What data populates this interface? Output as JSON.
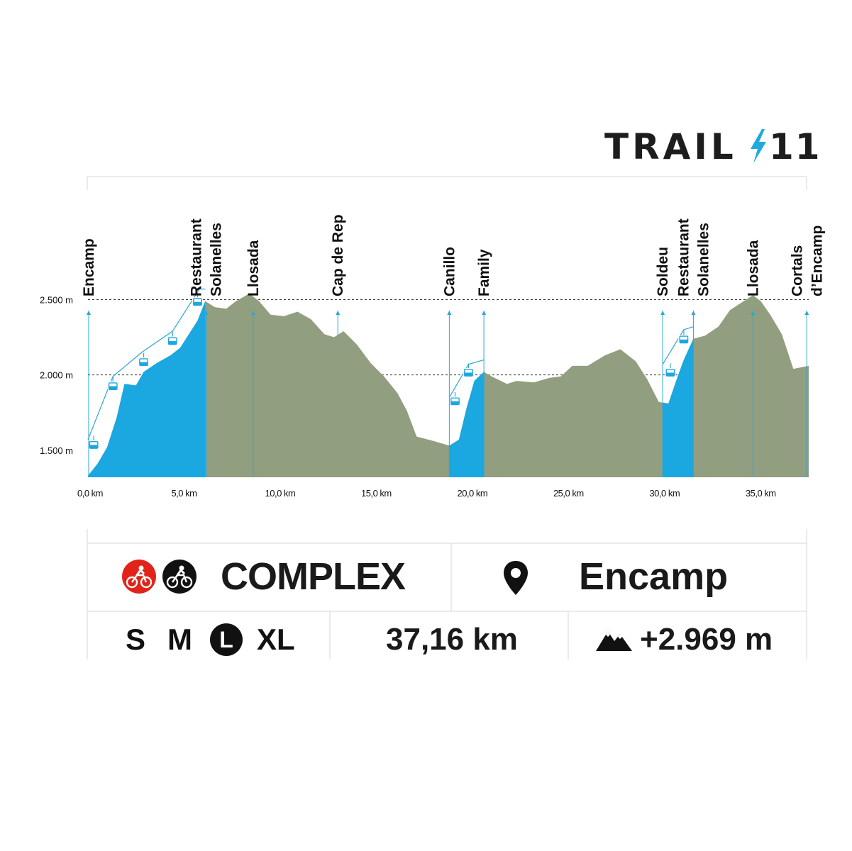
{
  "logo": {
    "text": "TRAIL",
    "number": "11",
    "bolt_color": "#1fa9e1"
  },
  "colors": {
    "lift": "#1ba7e0",
    "terrain": "#919e7f",
    "lift_line": "#2aa7d6",
    "grid": "#333333",
    "badge_red": "#e2231a",
    "badge_black": "#111111"
  },
  "chart_data": {
    "type": "area",
    "x_unit": "km",
    "y_unit": "m",
    "xlim": [
      0,
      37.5
    ],
    "ylim": [
      1320,
      2700
    ],
    "x_ticks": [
      {
        "value": 0,
        "label": "0,0 km"
      },
      {
        "value": 5,
        "label": "5,0 km"
      },
      {
        "value": 10,
        "label": "10,0 km"
      },
      {
        "value": 15,
        "label": "15,0 km"
      },
      {
        "value": 20,
        "label": "20,0 km"
      },
      {
        "value": 25,
        "label": "25,0 km"
      },
      {
        "value": 30,
        "label": "30,0 km"
      },
      {
        "value": 35,
        "label": "35,0 km"
      }
    ],
    "y_ticks": [
      {
        "value": 1500,
        "label": "1.500 m"
      },
      {
        "value": 2000,
        "label": "2.000 m"
      },
      {
        "value": 2500,
        "label": "2.500 m"
      }
    ],
    "gridlines": [
      2000,
      2500
    ],
    "profile": [
      [
        0,
        1330
      ],
      [
        0.5,
        1410
      ],
      [
        1,
        1520
      ],
      [
        1.5,
        1720
      ],
      [
        1.9,
        1940
      ],
      [
        2.5,
        1930
      ],
      [
        2.9,
        2020
      ],
      [
        3.6,
        2080
      ],
      [
        4.3,
        2130
      ],
      [
        4.8,
        2180
      ],
      [
        5.3,
        2280
      ],
      [
        5.7,
        2360
      ],
      [
        6.1,
        2490
      ],
      [
        6.6,
        2450
      ],
      [
        7.2,
        2440
      ],
      [
        7.7,
        2490
      ],
      [
        8.4,
        2540
      ],
      [
        8.9,
        2490
      ],
      [
        9.5,
        2400
      ],
      [
        10.2,
        2390
      ],
      [
        10.9,
        2420
      ],
      [
        11.6,
        2370
      ],
      [
        12.3,
        2270
      ],
      [
        12.8,
        2250
      ],
      [
        13.3,
        2290
      ],
      [
        14,
        2200
      ],
      [
        14.7,
        2080
      ],
      [
        15.4,
        1990
      ],
      [
        16.1,
        1880
      ],
      [
        16.6,
        1760
      ],
      [
        17.1,
        1590
      ],
      [
        18,
        1560
      ],
      [
        18.8,
        1530
      ],
      [
        19.3,
        1570
      ],
      [
        19.7,
        1780
      ],
      [
        20.1,
        1960
      ],
      [
        20.6,
        2020
      ],
      [
        21,
        1990
      ],
      [
        21.8,
        1940
      ],
      [
        22.3,
        1960
      ],
      [
        23.2,
        1950
      ],
      [
        24,
        1980
      ],
      [
        24.6,
        1990
      ],
      [
        25.2,
        2060
      ],
      [
        26,
        2060
      ],
      [
        26.9,
        2130
      ],
      [
        27.7,
        2170
      ],
      [
        28.5,
        2090
      ],
      [
        29.1,
        1970
      ],
      [
        29.7,
        1820
      ],
      [
        30.2,
        1810
      ],
      [
        30.6,
        1960
      ],
      [
        31,
        2100
      ],
      [
        31.5,
        2240
      ],
      [
        32.1,
        2260
      ],
      [
        32.8,
        2320
      ],
      [
        33.4,
        2430
      ],
      [
        34,
        2480
      ],
      [
        34.6,
        2530
      ],
      [
        35,
        2490
      ],
      [
        35.5,
        2400
      ],
      [
        36.1,
        2270
      ],
      [
        36.7,
        2040
      ],
      [
        37.5,
        2060
      ]
    ],
    "lift_segments": [
      [
        0,
        6.1
      ],
      [
        18.8,
        20.6
      ],
      [
        29.9,
        31.5
      ]
    ],
    "lift_cables": [
      [
        [
          0,
          1570
        ],
        [
          1.3,
          1990
        ],
        [
          2.8,
          2150
        ],
        [
          4.4,
          2290
        ],
        [
          5.8,
          2570
        ],
        [
          6.1,
          2570
        ]
      ],
      [
        [
          18.8,
          1850
        ],
        [
          19.8,
          2070
        ],
        [
          20.6,
          2100
        ]
      ],
      [
        [
          29.9,
          2070
        ],
        [
          31,
          2300
        ],
        [
          31.5,
          2320
        ]
      ]
    ],
    "cabins": [
      {
        "x": 0.3,
        "y": 1530
      },
      {
        "x": 1.3,
        "y": 1920
      },
      {
        "x": 2.9,
        "y": 2080
      },
      {
        "x": 4.4,
        "y": 2220
      },
      {
        "x": 5.7,
        "y": 2480
      },
      {
        "x": 19.1,
        "y": 1820
      },
      {
        "x": 19.8,
        "y": 2010
      },
      {
        "x": 30.3,
        "y": 2010
      },
      {
        "x": 31,
        "y": 2230
      }
    ],
    "waypoints": [
      {
        "x": 0.0,
        "lines": [
          "Encamp"
        ]
      },
      {
        "x": 6.15,
        "lines": [
          "Restaurant",
          "Solanelles"
        ]
      },
      {
        "x": 8.6,
        "lines": [
          "Llosada"
        ]
      },
      {
        "x": 13,
        "lines": [
          "Cap de Rep"
        ]
      },
      {
        "x": 18.8,
        "lines": [
          "Canillo"
        ]
      },
      {
        "x": 20.6,
        "lines": [
          "Family"
        ]
      },
      {
        "x": 29.9,
        "lines": [
          "Soldeu"
        ]
      },
      {
        "x": 31.5,
        "lines": [
          "Restaurant",
          "Solanelles"
        ]
      },
      {
        "x": 34.6,
        "lines": [
          "Llosada"
        ]
      },
      {
        "x": 37.4,
        "lines": [
          "Cortals",
          "d’Encamp"
        ]
      }
    ]
  },
  "info": {
    "difficulty": "COMPLEX",
    "location": "Encamp",
    "sizes": [
      "S",
      "M",
      "L",
      "XL"
    ],
    "selected_size": "L",
    "distance": "37,16 km",
    "elevation_gain": "+2.969 m"
  },
  "icons": {
    "badges": [
      "bike-red-icon",
      "bike-black-icon"
    ],
    "location": "location-pin-icon",
    "elevation": "mountain-icon"
  }
}
